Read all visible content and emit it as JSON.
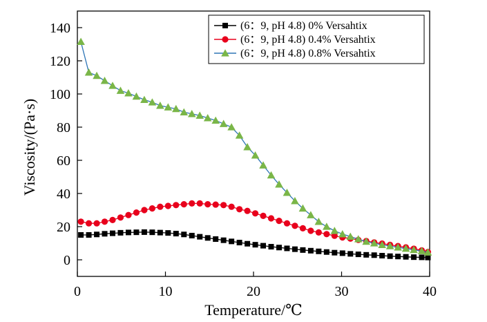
{
  "chart_data": {
    "type": "line",
    "title": "",
    "xlabel": "Temperature/℃",
    "ylabel": "Viscosity/(Pa·s)",
    "xlim": [
      0,
      40
    ],
    "ylim": [
      -10,
      150
    ],
    "xticks": [
      0,
      10,
      20,
      30,
      40
    ],
    "yticks": [
      0,
      20,
      40,
      60,
      80,
      100,
      120,
      140
    ],
    "grid": false,
    "legend_position": "top-right",
    "series": [
      {
        "name": "(6：9, pH 4.8) 0% Versahtix",
        "color": "#000000",
        "marker": "square",
        "x": [
          0.4,
          1.3,
          2.2,
          3.1,
          4.0,
          4.9,
          5.8,
          6.7,
          7.6,
          8.5,
          9.4,
          10.3,
          11.2,
          12.1,
          13.0,
          13.9,
          14.8,
          15.7,
          16.6,
          17.5,
          18.4,
          19.3,
          20.2,
          21.1,
          22.0,
          22.9,
          23.8,
          24.7,
          25.6,
          26.5,
          27.4,
          28.3,
          29.2,
          30.1,
          31.0,
          31.9,
          32.8,
          33.7,
          34.6,
          35.5,
          36.4,
          37.3,
          38.2,
          39.1,
          39.8
        ],
        "y": [
          15.0,
          15.0,
          15.3,
          15.7,
          16.0,
          16.3,
          16.5,
          16.6,
          16.7,
          16.6,
          16.4,
          16.2,
          15.8,
          15.3,
          14.6,
          13.9,
          13.2,
          12.5,
          11.8,
          11.1,
          10.4,
          9.7,
          9.1,
          8.5,
          7.9,
          7.4,
          6.9,
          6.4,
          5.9,
          5.5,
          5.1,
          4.7,
          4.3,
          4.0,
          3.6,
          3.3,
          3.0,
          2.8,
          2.5,
          2.2,
          2.0,
          1.8,
          1.6,
          1.5,
          1.4
        ]
      },
      {
        "name": "(6：9, pH 4.8) 0.4% Versahtix",
        "color": "#e8001c",
        "marker": "circle",
        "x": [
          0.4,
          1.3,
          2.2,
          3.1,
          4.0,
          4.9,
          5.8,
          6.7,
          7.6,
          8.5,
          9.4,
          10.3,
          11.2,
          12.1,
          13.0,
          13.9,
          14.8,
          15.7,
          16.6,
          17.5,
          18.4,
          19.3,
          20.2,
          21.1,
          22.0,
          22.9,
          23.8,
          24.7,
          25.6,
          26.5,
          27.4,
          28.3,
          29.2,
          30.1,
          31.0,
          31.9,
          32.8,
          33.7,
          34.6,
          35.5,
          36.4,
          37.3,
          38.2,
          39.1,
          39.8
        ],
        "y": [
          23.0,
          22.0,
          22.0,
          23.0,
          24.0,
          25.5,
          27.0,
          28.5,
          30.0,
          31.0,
          32.0,
          32.5,
          33.0,
          33.5,
          34.0,
          34.0,
          33.5,
          33.3,
          33.0,
          32.0,
          30.5,
          29.5,
          28.0,
          26.5,
          25.0,
          23.5,
          22.0,
          20.5,
          19.0,
          17.5,
          16.5,
          15.5,
          14.5,
          13.5,
          12.8,
          12.0,
          11.3,
          10.5,
          9.8,
          9.0,
          8.3,
          7.5,
          6.7,
          5.7,
          4.7
        ]
      },
      {
        "name": "(6：9, pH 4.8) 0.8% Versahtix",
        "color": "#2e75b6",
        "marker": "triangle",
        "marker_color": "#7ab648",
        "x": [
          0.4,
          1.3,
          2.2,
          3.1,
          4.0,
          4.9,
          5.8,
          6.7,
          7.6,
          8.5,
          9.4,
          10.3,
          11.2,
          12.1,
          13.0,
          13.9,
          14.8,
          15.7,
          16.6,
          17.5,
          18.4,
          19.3,
          20.2,
          21.1,
          22.0,
          22.9,
          23.8,
          24.7,
          25.6,
          26.5,
          27.4,
          28.3,
          29.2,
          30.1,
          31.0,
          31.9,
          32.8,
          33.7,
          34.6,
          35.5,
          36.4,
          37.3,
          38.2,
          39.1,
          39.8
        ],
        "y": [
          131.5,
          113.0,
          111.0,
          108.0,
          105.0,
          102.0,
          100.5,
          98.5,
          96.5,
          95.0,
          93.0,
          92.0,
          91.0,
          89.0,
          88.0,
          87.0,
          85.5,
          84.0,
          82.0,
          80.0,
          75.0,
          68.0,
          63.0,
          57.0,
          51.0,
          45.5,
          40.5,
          35.5,
          31.0,
          27.0,
          23.0,
          20.0,
          17.5,
          15.5,
          14.0,
          12.5,
          11.0,
          10.0,
          9.0,
          8.3,
          7.5,
          6.8,
          6.0,
          5.3,
          4.5
        ]
      }
    ]
  }
}
